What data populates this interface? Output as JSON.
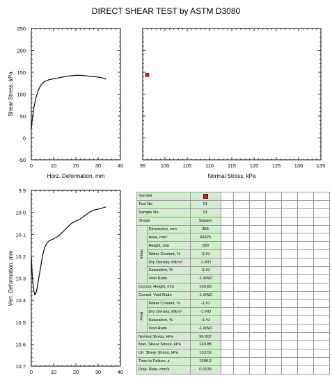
{
  "title": "DIRECT SHEAR TEST by ASTM D3080",
  "chart_data": [
    {
      "id": "shear",
      "type": "line",
      "xlabel": "Horz. Deformation, mm",
      "ylabel": "Shear Stress, kPa",
      "xlim": [
        0,
        40
      ],
      "ylim": [
        -50,
        250
      ],
      "xticks": [
        0,
        10,
        20,
        30,
        40
      ],
      "yticks": [
        -50,
        0,
        50,
        100,
        150,
        200,
        250
      ],
      "series": [
        {
          "x": [
            0,
            0.5,
            1,
            2,
            3,
            4,
            5,
            6,
            7,
            8,
            10,
            12,
            14,
            16,
            18,
            20,
            22,
            24,
            26,
            28,
            30,
            32,
            33.5
          ],
          "y": [
            20,
            45,
            65,
            90,
            107,
            118,
            125,
            129,
            131,
            133,
            135,
            137,
            139,
            141,
            142,
            143,
            143,
            142,
            141,
            140,
            139,
            137,
            134
          ]
        }
      ]
    },
    {
      "id": "normal",
      "type": "scatter",
      "xlabel": "Normal Stress, kPa",
      "ylabel": "",
      "xlim": [
        95,
        135
      ],
      "ylim": [
        -50,
        250
      ],
      "xticks": [
        95,
        100,
        105,
        110,
        115,
        120,
        125,
        130,
        135
      ],
      "yticks": [
        -50,
        0,
        50,
        100,
        150,
        200,
        250
      ],
      "series": [
        {
          "x": [
            96.007
          ],
          "y": [
            143.88
          ],
          "color": "#c0221d"
        }
      ]
    },
    {
      "id": "vert",
      "type": "line",
      "xlabel": "",
      "ylabel": "Vert. Deformation, mm",
      "xlim": [
        0,
        40
      ],
      "ylim": [
        10.7,
        9.9
      ],
      "inverted_y": true,
      "xticks": [
        0,
        10,
        20,
        30,
        40
      ],
      "xtick_labels": [
        "0",
        "10",
        "20",
        "30",
        "40"
      ],
      "yticks": [
        9.9,
        10.0,
        10.1,
        10.2,
        10.3,
        10.4,
        10.5,
        10.6,
        10.7
      ],
      "ytick_labels": [
        "9.9",
        "10.0",
        "10.1",
        "10.2",
        "10.3",
        "10.4",
        "10.5",
        "10.6",
        "10.7"
      ],
      "series": [
        {
          "x": [
            0,
            0.5,
            1,
            1.5,
            2,
            2.5,
            3,
            3.5,
            4,
            5,
            6,
            7,
            8,
            9,
            10,
            12,
            14,
            16,
            18,
            20,
            22,
            24,
            26,
            28,
            30,
            32,
            33.5
          ],
          "y": [
            10.2,
            10.3,
            10.35,
            10.375,
            10.37,
            10.35,
            10.32,
            10.29,
            10.26,
            10.2,
            10.16,
            10.14,
            10.13,
            10.125,
            10.12,
            10.11,
            10.09,
            10.07,
            10.05,
            10.04,
            10.03,
            10.015,
            10.0,
            9.99,
            9.985,
            9.98,
            9.975
          ]
        }
      ]
    }
  ],
  "table": {
    "rows": [
      {
        "label": "Symbol",
        "value": "",
        "symbol": true
      },
      {
        "label": "Test No.",
        "value": "01"
      },
      {
        "label": "Sample No.",
        "value": "01"
      },
      {
        "label": "Shape",
        "value": "Square"
      },
      {
        "group": "Initial",
        "label": "Dimension, mm",
        "value": "305"
      },
      {
        "group": "Initial",
        "label": "Area, mm²",
        "value": "93025"
      },
      {
        "group": "Initial",
        "label": "Height, mm",
        "value": "180"
      },
      {
        "group": "Initial",
        "label": "Water Content, %",
        "value": "-1.#J"
      },
      {
        "group": "Initial",
        "label": "Dry Density, kN/m³",
        "value": "-1.#IO"
      },
      {
        "group": "Initial",
        "label": "Saturation, %",
        "value": "-1.#J"
      },
      {
        "group": "Initial",
        "label": "Void Ratio",
        "value": "-1.#IND"
      },
      {
        "label": "Consol. Height, mm",
        "value": "169.83"
      },
      {
        "label": "Consol. Void Ratio",
        "value": "-1.#IND"
      },
      {
        "group": "Final",
        "label": "Water Content, %",
        "value": "-1.#J"
      },
      {
        "group": "Final",
        "label": "Dry Density, kN/m³",
        "value": "-1.#IO"
      },
      {
        "group": "Final",
        "label": "Saturation, %",
        "value": "-1.#J"
      },
      {
        "group": "Final",
        "label": "Void Ratio",
        "value": "-1.#IND"
      },
      {
        "label": "Normal Stress, kPa",
        "value": "96.007"
      },
      {
        "label": "Max. Shear Stress, kPa",
        "value": "143.88"
      },
      {
        "label": "Ult. Shear Stress, kPa",
        "value": "133.59"
      },
      {
        "label": "Time to Failure, s",
        "value": "1596.2"
      },
      {
        "label": "Disp. Rate, mm/s",
        "value": "0.0133"
      }
    ]
  }
}
